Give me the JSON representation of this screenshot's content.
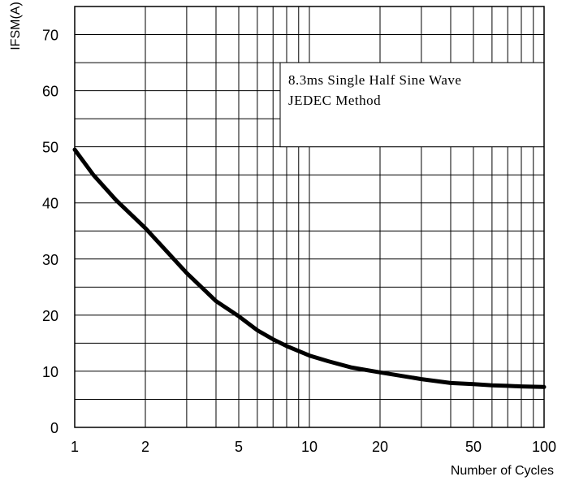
{
  "chart_data": {
    "type": "line",
    "title": "",
    "xlabel": "Number of Cycles",
    "ylabel": "IFSM(A)",
    "xscale": "log",
    "xlim": [
      1,
      100
    ],
    "ylim": [
      0,
      75
    ],
    "x_ticks": [
      1,
      2,
      5,
      10,
      20,
      50,
      100
    ],
    "x_tick_labels": [
      "1",
      "2",
      "5",
      "10",
      "20",
      "50",
      "100"
    ],
    "y_ticks": [
      0,
      10,
      20,
      30,
      40,
      50,
      60,
      70
    ],
    "y_tick_labels": [
      "0",
      "10",
      "20",
      "30",
      "40",
      "50",
      "60",
      "70"
    ],
    "grid": true,
    "annotation": {
      "line1": "8.3ms Single Half Sine Wave",
      "line2": "JEDEC Method"
    },
    "series": [
      {
        "x": [
          1,
          1.2,
          1.5,
          2,
          3,
          4,
          5,
          6,
          7,
          8,
          10,
          12,
          15,
          20,
          30,
          40,
          50,
          60,
          70,
          80,
          100
        ],
        "y": [
          49.5,
          45,
          40.5,
          35.5,
          27.5,
          22.5,
          19.8,
          17.3,
          15.7,
          14.5,
          12.8,
          11.8,
          10.7,
          9.8,
          8.6,
          7.9,
          7.7,
          7.5,
          7.4,
          7.3,
          7.2
        ]
      }
    ]
  }
}
